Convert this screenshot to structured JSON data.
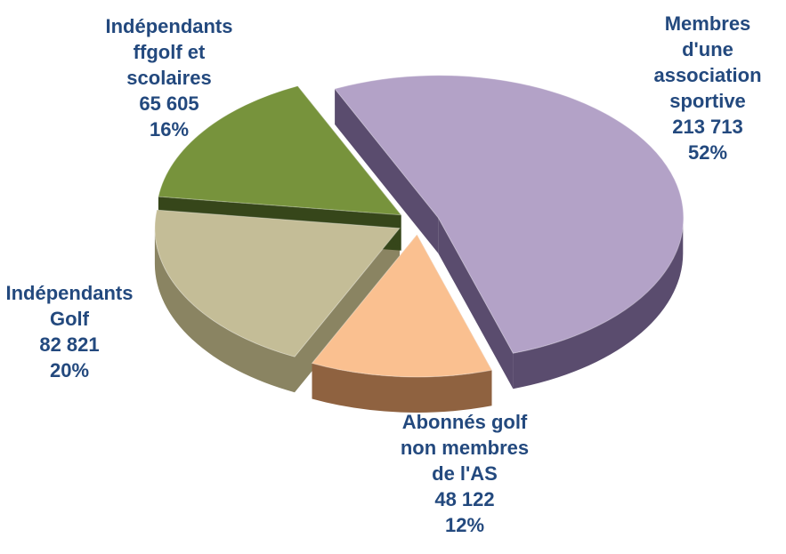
{
  "chart_data": {
    "type": "pie3d",
    "categories": [
      "Membres\nd'une\nassociation\nsportive",
      "Abonnés golf\nnon membres\nde l'AS",
      "Indépendants\nGolf",
      "Indépendants\nffgolf et\nscolaires"
    ],
    "values": [
      52,
      12,
      20,
      16
    ],
    "value_labels": [
      "52%",
      "12%",
      "20%",
      "16%"
    ],
    "counts": [
      213713,
      48122,
      82821,
      65605
    ],
    "count_labels": [
      "213 713",
      "48 122",
      "82 821",
      "65 605"
    ],
    "colors": [
      "#b3a2c7",
      "#fac090",
      "#c4bd97",
      "#77933c"
    ],
    "side_colors": [
      "#5a4c6e",
      "#8f6240",
      "#8a8462",
      "#36461a"
    ]
  }
}
